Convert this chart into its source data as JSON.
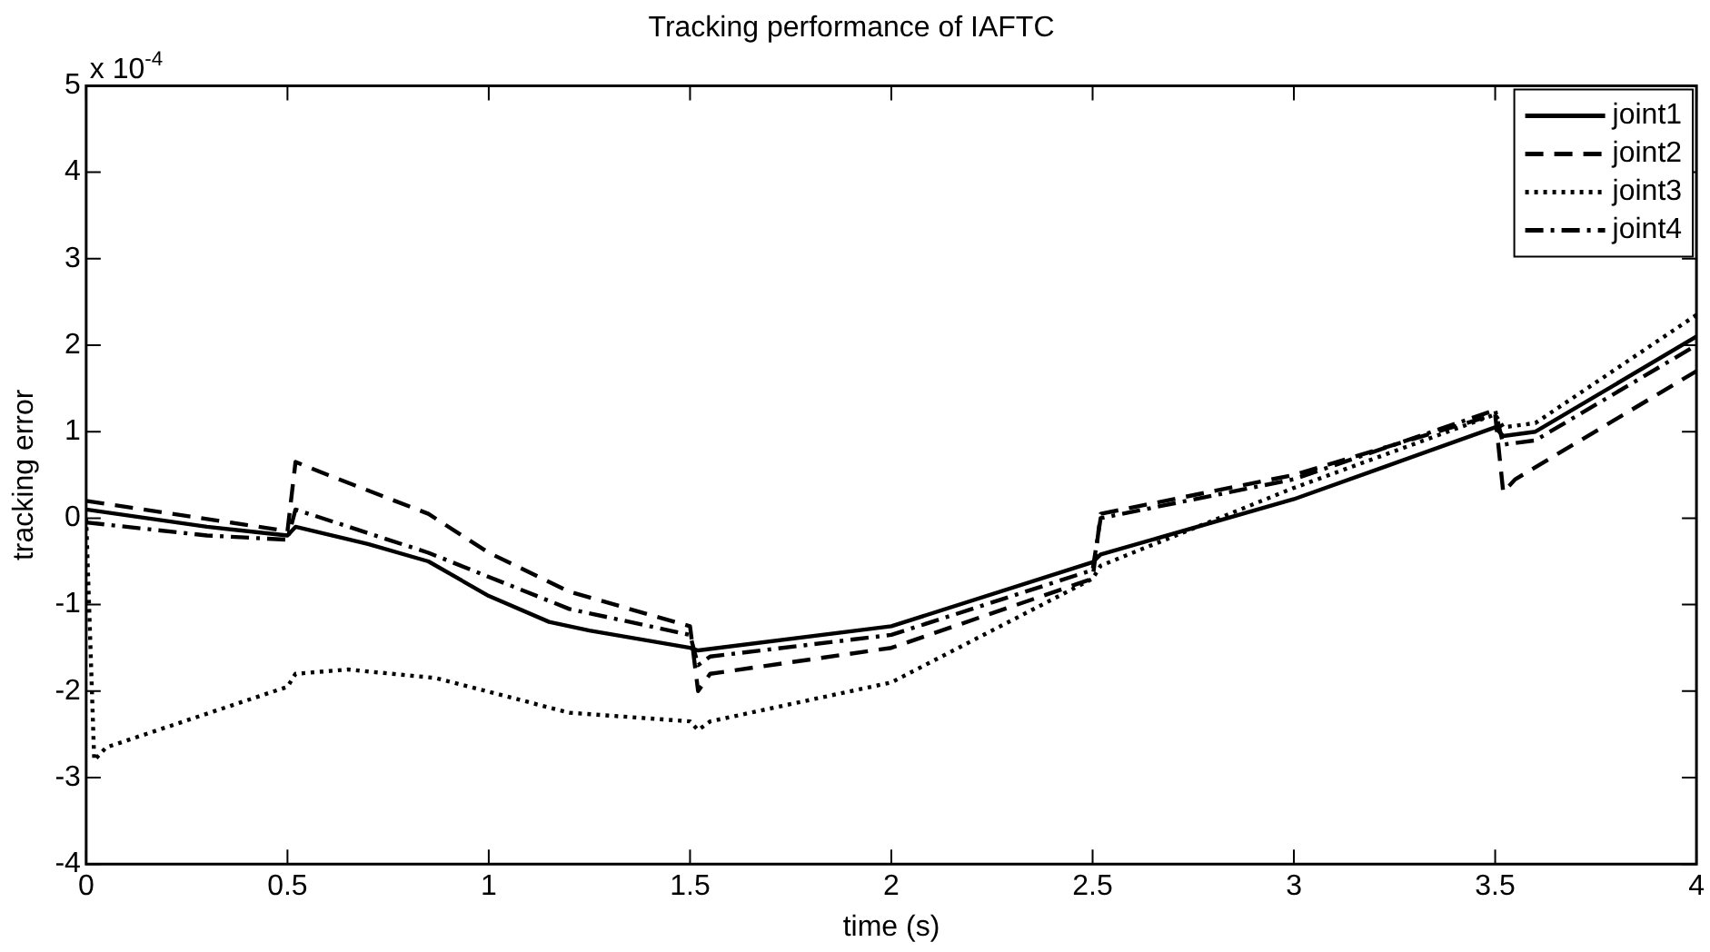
{
  "chart_data": {
    "type": "line",
    "title": "Tracking performance of IAFTC",
    "xlabel": "time (s)",
    "ylabel": "tracking error",
    "annotations": [
      "x 10$^{-4}$"
    ],
    "xlim": [
      0,
      4
    ],
    "xticks": [
      0,
      0.5,
      1,
      1.5,
      2,
      2.5,
      3,
      3.5,
      4
    ],
    "ylim": [
      -4,
      5
    ],
    "yticks": [
      -4,
      -3,
      -2,
      -1,
      0,
      1,
      2,
      3,
      4,
      5
    ],
    "grid": false,
    "legend": "top right",
    "marker": "none",
    "series": [
      {
        "name": "joint1",
        "color": "#000000",
        "line_style": "solid",
        "x": [
          0,
          0.3,
          0.5,
          0.52,
          0.7,
          0.85,
          1.0,
          1.15,
          1.25,
          1.5,
          1.52,
          2.0,
          2.5,
          2.52,
          3.0,
          3.5,
          3.52,
          3.6,
          4.0
        ],
        "values": [
          0.1,
          -0.1,
          -0.2,
          -0.1,
          -0.3,
          -0.5,
          -0.9,
          -1.2,
          -1.3,
          -1.5,
          -1.53,
          -1.25,
          -0.51,
          -0.42,
          0.22,
          1.05,
          0.95,
          1.0,
          2.1
        ]
      },
      {
        "name": "joint2",
        "color": "#000000",
        "line_style": "dashed",
        "x": [
          0,
          0.5,
          0.52,
          0.6,
          0.85,
          1.0,
          1.2,
          1.5,
          1.52,
          1.55,
          2.0,
          2.5,
          2.52,
          3.0,
          3.5,
          3.52,
          3.55,
          4.0
        ],
        "values": [
          0.2,
          -0.15,
          0.65,
          0.5,
          0.05,
          -0.4,
          -0.85,
          -1.25,
          -2.0,
          -1.8,
          -1.5,
          -0.7,
          0.05,
          0.5,
          1.2,
          0.3,
          0.45,
          1.7
        ]
      },
      {
        "name": "joint3",
        "color": "#000000",
        "line_style": "dotted",
        "x": [
          0,
          0.02,
          0.05,
          0.5,
          0.52,
          0.65,
          0.87,
          1.2,
          1.5,
          1.52,
          1.55,
          2.0,
          2.5,
          2.52,
          3.0,
          3.5,
          3.52,
          3.6,
          4.0
        ],
        "values": [
          0,
          -2.8,
          -2.65,
          -1.95,
          -1.8,
          -1.75,
          -1.85,
          -2.25,
          -2.35,
          -2.45,
          -2.35,
          -1.9,
          -0.7,
          -0.55,
          0.35,
          1.2,
          1.05,
          1.1,
          2.35
        ]
      },
      {
        "name": "joint4",
        "color": "#000000",
        "line_style": "dashdot",
        "x": [
          0,
          0.3,
          0.5,
          0.52,
          0.85,
          1.2,
          1.5,
          1.52,
          1.55,
          2.0,
          2.5,
          2.52,
          3.0,
          3.5,
          3.52,
          3.6,
          4.0
        ],
        "values": [
          -0.05,
          -0.2,
          -0.25,
          0.1,
          -0.4,
          -1.05,
          -1.35,
          -1.7,
          -1.6,
          -1.35,
          -0.6,
          0.0,
          0.45,
          1.25,
          0.85,
          0.9,
          2.0
        ]
      }
    ]
  }
}
